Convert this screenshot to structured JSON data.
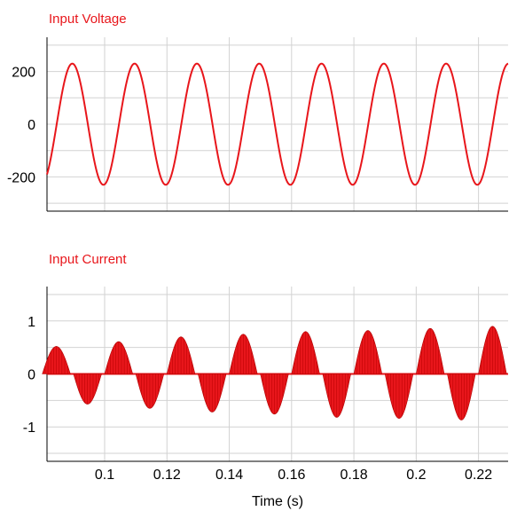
{
  "chart_data": [
    {
      "type": "line",
      "title": "Input Voltage",
      "color": "#e8161b",
      "ylim": [
        -330,
        330
      ],
      "yticks": [
        -200,
        0,
        200
      ],
      "ytick_labels": [
        "-200",
        "0",
        "200"
      ],
      "minor_ygrid": [
        -300,
        -100,
        100,
        300
      ],
      "grid": true,
      "series": [
        {
          "waveform": "sine",
          "amplitude_peak": 230,
          "frequency_hz": 50,
          "phase_deg": -83
        }
      ]
    },
    {
      "type": "area",
      "title": "Input Current",
      "color": "#e8161b",
      "ylim": [
        -1.65,
        1.65
      ],
      "yticks": [
        -1,
        0,
        1
      ],
      "ytick_labels": [
        "-1",
        "0",
        "1"
      ],
      "minor_ygrid": [
        -1.5,
        -0.5,
        0.5,
        1.5
      ],
      "grid": true,
      "series": [
        {
          "waveform": "pulsed",
          "lobes": [
            {
              "center": 0.0845,
              "peak": 0.52
            },
            {
              "center": 0.0945,
              "peak": -0.57
            },
            {
              "center": 0.1045,
              "peak": 0.61
            },
            {
              "center": 0.1145,
              "peak": -0.65
            },
            {
              "center": 0.1245,
              "peak": 0.7
            },
            {
              "center": 0.1345,
              "peak": -0.72
            },
            {
              "center": 0.1445,
              "peak": 0.75
            },
            {
              "center": 0.1545,
              "peak": -0.76
            },
            {
              "center": 0.1645,
              "peak": 0.8
            },
            {
              "center": 0.1745,
              "peak": -0.82
            },
            {
              "center": 0.1845,
              "peak": 0.82
            },
            {
              "center": 0.1945,
              "peak": -0.84
            },
            {
              "center": 0.2045,
              "peak": 0.86
            },
            {
              "center": 0.2145,
              "peak": -0.87
            },
            {
              "center": 0.2245,
              "peak": 0.9
            }
          ]
        }
      ]
    }
  ],
  "x_axis": {
    "label": "Time (s)",
    "xlim": [
      0.0815,
      0.2295
    ],
    "ticks": [
      0.1,
      0.12,
      0.14,
      0.16,
      0.18,
      0.2,
      0.22
    ],
    "tick_labels": [
      "0.1",
      "0.12",
      "0.14",
      "0.16",
      "0.18",
      "0.2",
      "0.22"
    ]
  }
}
